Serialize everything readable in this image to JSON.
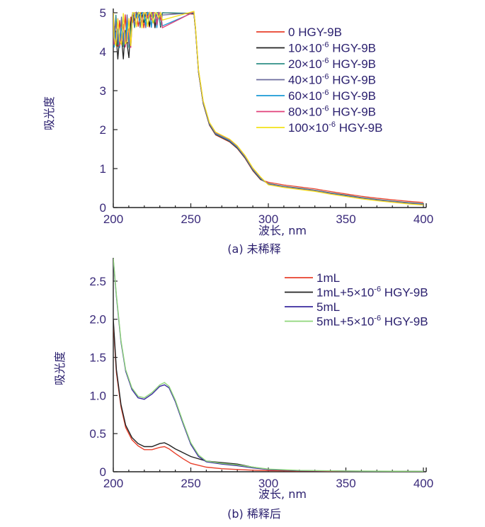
{
  "chart_data": [
    {
      "type": "line",
      "xlabel": "波长, nm",
      "ylabel": "吸光度",
      "caption": "(a)  未稀释",
      "xlim": [
        200,
        400
      ],
      "ylim": [
        0,
        5
      ],
      "xticks": [
        "200",
        "250",
        "300",
        "350",
        "400"
      ],
      "yticks": [
        "0",
        "1",
        "2",
        "3",
        "4",
        "5"
      ],
      "legend_position": "top-right",
      "series": [
        {
          "name": "0 HGY-9B",
          "base": "0",
          "sup": "",
          "tail": " HGY-9B",
          "color": "#e8412c"
        },
        {
          "name": "10×10-6 HGY-9B",
          "base": "10×10",
          "sup": "-6",
          "tail": " HGY-9B",
          "color": "#222222"
        },
        {
          "name": "20×10-6 HGY-9B",
          "base": "20×10",
          "sup": "-6",
          "tail": " HGY-9B",
          "color": "#2e8f86"
        },
        {
          "name": "40×10-6 HGY-9B",
          "base": "40×10",
          "sup": "-6",
          "tail": " HGY-9B",
          "color": "#6b6b9e"
        },
        {
          "name": "60×10-6 HGY-9B",
          "base": "60×10",
          "sup": "-6",
          "tail": " HGY-9B",
          "color": "#1a9ad6"
        },
        {
          "name": "80×10-6 HGY-9B",
          "base": "80×10",
          "sup": "-6",
          "tail": " HGY-9B",
          "color": "#e0407a"
        },
        {
          "name": "100×10-6 HGY-9B",
          "base": "100×10",
          "sup": "-6",
          "tail": " HGY-9B",
          "color": "#f2e21a"
        }
      ],
      "curve": {
        "x": [
          200,
          252,
          253,
          255,
          258,
          262,
          266,
          270,
          275,
          280,
          285,
          290,
          295,
          300,
          310,
          320,
          330,
          340,
          350,
          360,
          370,
          380,
          390,
          400
        ],
        "y": [
          5.0,
          5.0,
          4.6,
          3.5,
          2.7,
          2.15,
          1.9,
          1.82,
          1.72,
          1.55,
          1.3,
          0.98,
          0.75,
          0.62,
          0.55,
          0.5,
          0.45,
          0.38,
          0.32,
          0.26,
          0.21,
          0.17,
          0.13,
          0.1
        ]
      }
    },
    {
      "type": "line",
      "xlabel": "波长, nm",
      "ylabel": "吸光度",
      "caption": "(b)  稀释后",
      "xlim": [
        200,
        400
      ],
      "ylim": [
        0,
        2.75
      ],
      "xticks": [
        "200",
        "250",
        "300",
        "350",
        "400"
      ],
      "yticks": [
        "0",
        "0.5",
        "1.0",
        "1.5",
        "2.0",
        "2.5"
      ],
      "legend_position": "top-right",
      "series": [
        {
          "name": "1mL",
          "base": "1mL",
          "sup": "",
          "tail": "",
          "color": "#e8412c",
          "x": [
            200,
            202,
            205,
            208,
            212,
            216,
            220,
            225,
            230,
            233,
            236,
            240,
            245,
            250,
            260,
            270,
            280,
            290,
            300,
            320,
            350,
            400
          ],
          "y": [
            1.95,
            1.3,
            0.85,
            0.58,
            0.42,
            0.34,
            0.29,
            0.29,
            0.32,
            0.33,
            0.3,
            0.24,
            0.17,
            0.11,
            0.06,
            0.04,
            0.03,
            0.02,
            0.015,
            0.01,
            0.005,
            0.003
          ]
        },
        {
          "name": "1mL+5×10-6 HGY-9B",
          "base": "1mL+5×10",
          "sup": "-6",
          "tail": " HGY-9B",
          "color": "#222222",
          "x": [
            200,
            202,
            205,
            208,
            212,
            216,
            220,
            225,
            230,
            233,
            236,
            240,
            245,
            250,
            260,
            270,
            280,
            290,
            300,
            320,
            350,
            400
          ],
          "y": [
            2.0,
            1.34,
            0.88,
            0.61,
            0.45,
            0.37,
            0.33,
            0.33,
            0.37,
            0.38,
            0.35,
            0.3,
            0.25,
            0.2,
            0.14,
            0.12,
            0.1,
            0.06,
            0.03,
            0.015,
            0.008,
            0.004
          ]
        },
        {
          "name": "5mL",
          "base": "5mL",
          "sup": "",
          "tail": "",
          "color": "#3a2a9e",
          "x": [
            200,
            202,
            205,
            208,
            212,
            216,
            220,
            225,
            230,
            233,
            236,
            240,
            245,
            250,
            255,
            260,
            270,
            280,
            290,
            300,
            320,
            350,
            400
          ],
          "y": [
            2.78,
            2.3,
            1.7,
            1.32,
            1.08,
            0.97,
            0.95,
            1.02,
            1.12,
            1.14,
            1.1,
            0.92,
            0.63,
            0.36,
            0.2,
            0.13,
            0.1,
            0.08,
            0.05,
            0.03,
            0.015,
            0.008,
            0.004
          ]
        },
        {
          "name": "5mL+5×10-6 HGY-9B",
          "base": "5mL+5×10",
          "sup": "-6",
          "tail": " HGY-9B",
          "color": "#8fd67a",
          "x": [
            200,
            202,
            205,
            208,
            212,
            216,
            220,
            225,
            230,
            233,
            236,
            240,
            245,
            250,
            255,
            260,
            270,
            280,
            290,
            300,
            320,
            350,
            400
          ],
          "y": [
            2.8,
            2.32,
            1.72,
            1.34,
            1.1,
            0.99,
            0.97,
            1.04,
            1.14,
            1.17,
            1.12,
            0.94,
            0.65,
            0.38,
            0.22,
            0.14,
            0.11,
            0.09,
            0.06,
            0.035,
            0.018,
            0.01,
            0.005
          ]
        }
      ]
    }
  ]
}
